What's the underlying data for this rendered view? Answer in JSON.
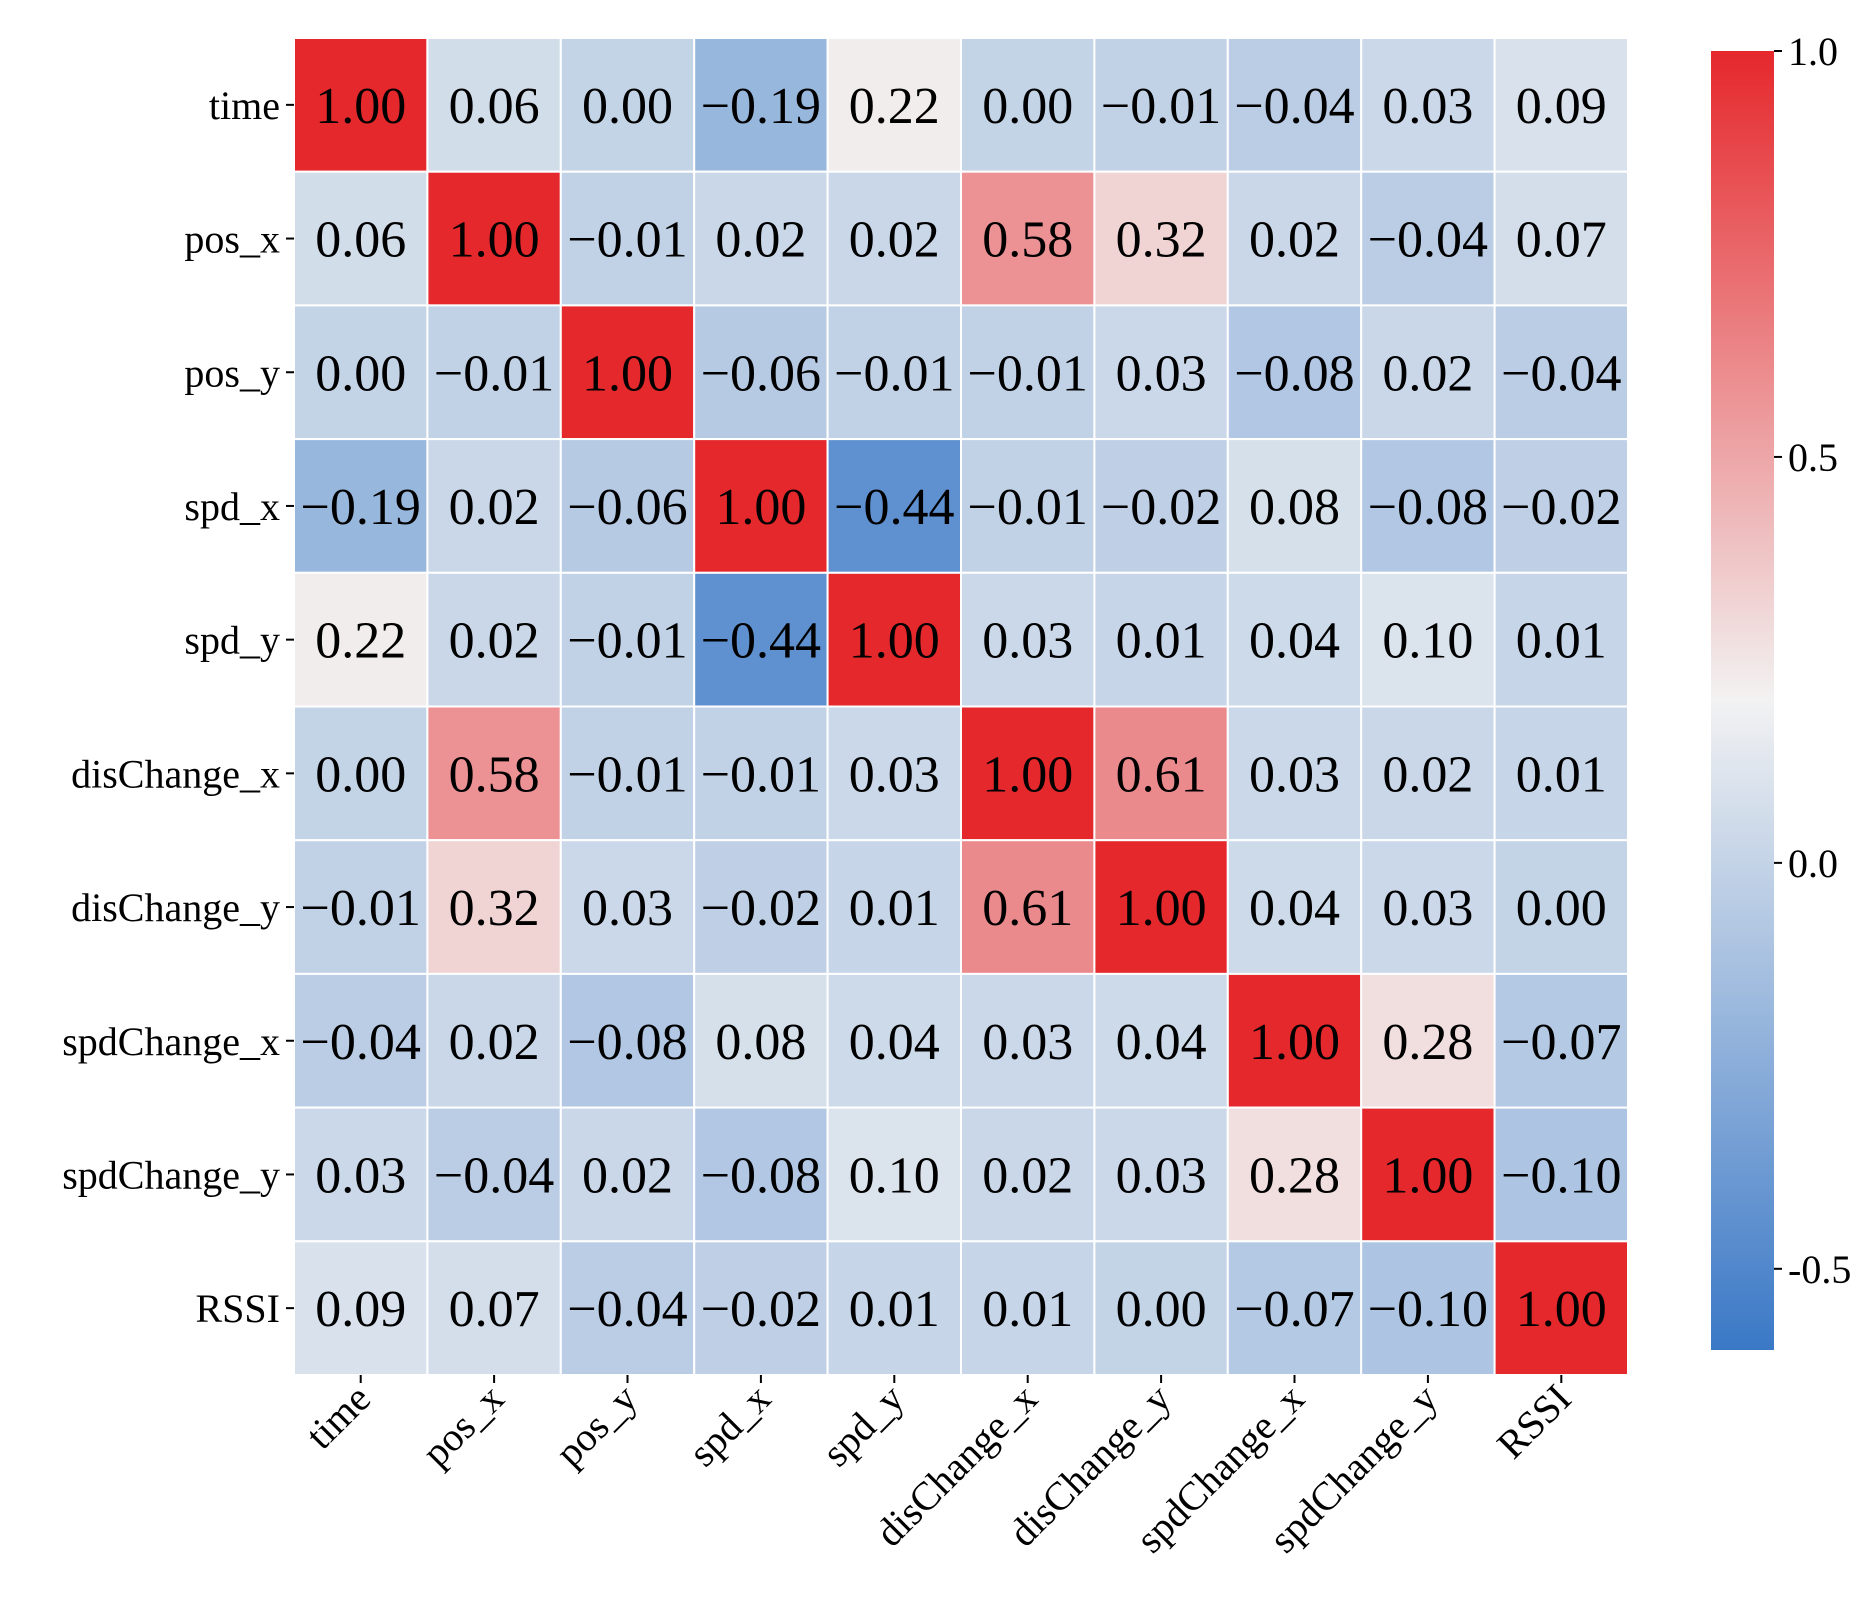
{
  "chart_data": {
    "type": "heatmap",
    "title": "",
    "xlabel": "",
    "ylabel": "",
    "row_labels": [
      "time",
      "pos_x",
      "pos_y",
      "spd_x",
      "spd_y",
      "disChange_x",
      "disChange_y",
      "spdChange_x",
      "spdChange_y",
      "RSSI"
    ],
    "col_labels": [
      "time",
      "pos_x",
      "pos_y",
      "spd_x",
      "spd_y",
      "disChange_x",
      "disChange_y",
      "spdChange_x",
      "spdChange_y",
      "RSSI"
    ],
    "values": [
      [
        1.0,
        0.06,
        0.0,
        -0.19,
        0.22,
        0.0,
        -0.01,
        -0.04,
        0.03,
        0.09
      ],
      [
        0.06,
        1.0,
        -0.01,
        0.02,
        0.02,
        0.58,
        0.32,
        0.02,
        -0.04,
        0.07
      ],
      [
        0.0,
        -0.01,
        1.0,
        -0.06,
        -0.01,
        -0.01,
        0.03,
        -0.08,
        0.02,
        -0.04
      ],
      [
        -0.19,
        0.02,
        -0.06,
        1.0,
        -0.44,
        -0.01,
        -0.02,
        0.08,
        -0.08,
        -0.02
      ],
      [
        0.22,
        0.02,
        -0.01,
        -0.44,
        1.0,
        0.03,
        0.01,
        0.04,
        0.1,
        0.01
      ],
      [
        0.0,
        0.58,
        -0.01,
        -0.01,
        0.03,
        1.0,
        0.61,
        0.03,
        0.02,
        0.01
      ],
      [
        -0.01,
        0.32,
        0.03,
        -0.02,
        0.01,
        0.61,
        1.0,
        0.04,
        0.03,
        0.0
      ],
      [
        -0.04,
        0.02,
        -0.08,
        0.08,
        0.04,
        0.03,
        0.04,
        1.0,
        0.28,
        -0.07
      ],
      [
        0.03,
        -0.04,
        0.02,
        -0.08,
        0.1,
        0.02,
        0.03,
        0.28,
        1.0,
        -0.1
      ],
      [
        0.09,
        0.07,
        -0.04,
        -0.02,
        0.01,
        0.01,
        0.0,
        -0.07,
        -0.1,
        1.0
      ]
    ],
    "annotation_format": "2 decimals",
    "colorbar": {
      "range": [
        -0.6,
        1.0
      ],
      "ticks": [
        -0.5,
        0.0,
        0.5,
        1.0
      ],
      "tick_labels": [
        "-0.5",
        "0.0",
        "0.5",
        "1.0"
      ],
      "colors": {
        "low": "#3a78c6",
        "mid": "#f2f2f2",
        "high": "#e5282c"
      },
      "mid_value": 0.2
    },
    "legend_position": "right"
  }
}
